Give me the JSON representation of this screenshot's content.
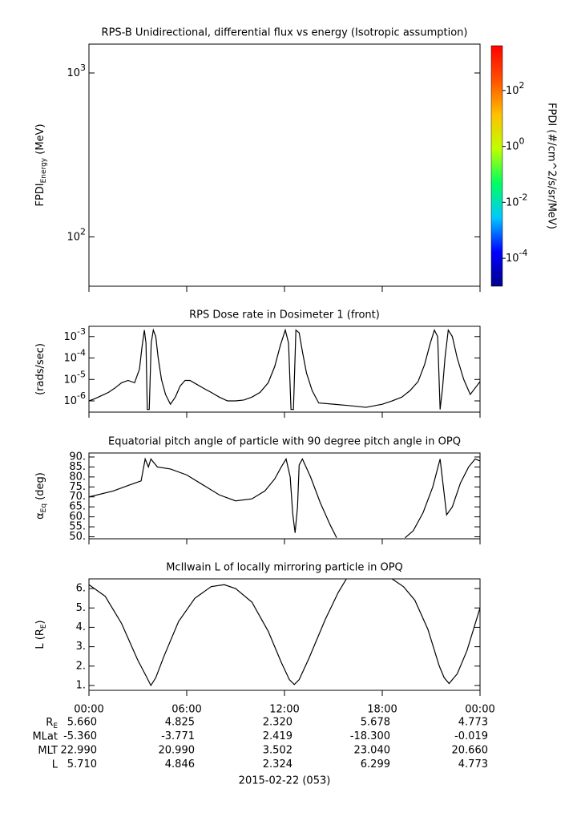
{
  "chart_data": [
    {
      "type": "spectrogram",
      "title": "RPS-B  Unidirectional, differential flux vs energy (Isotropic assumption)",
      "ylabel": {
        "text": "FPDI",
        "sub": "Energy",
        "rest": " (MeV)"
      },
      "log_y": true,
      "ylim": [
        50,
        1500
      ],
      "yticks": [
        {
          "value": 100,
          "label": "10",
          "exponent": "2"
        },
        {
          "value": 1000,
          "label": "10",
          "exponent": "3"
        }
      ],
      "colorbar": {
        "label": "FPDI (#/cm^2/s/sr/MeV)",
        "log": true,
        "clim": [
          1e-05,
          4000
        ],
        "colors": [
          "#00008b",
          "#0000ff",
          "#00c8ff",
          "#00ff60",
          "#c0ff00",
          "#ffc000",
          "#ff5000",
          "#ff0000"
        ],
        "ticks": [
          {
            "value": 0.0001,
            "label": "10",
            "exponent": "-4"
          },
          {
            "value": 0.01,
            "label": "10",
            "exponent": "-2"
          },
          {
            "value": 1,
            "label": "10",
            "exponent": "0"
          },
          {
            "value": 100,
            "label": "10",
            "exponent": "2"
          }
        ]
      }
    },
    {
      "type": "line",
      "title": "RPS  Dose rate in Dosimeter 1 (front)",
      "ylabel": {
        "text": "(rads/sec)"
      },
      "log_y": true,
      "ylim": [
        3e-07,
        0.003
      ],
      "color": "#000000",
      "yticks": [
        {
          "value": 1e-06,
          "label": "10",
          "exponent": "-6"
        },
        {
          "value": 1e-05,
          "label": "10",
          "exponent": "-5"
        },
        {
          "value": 0.0001,
          "label": "10",
          "exponent": "-4"
        },
        {
          "value": 0.001,
          "label": "10",
          "exponent": "-3"
        }
      ],
      "x": [
        0,
        0.4,
        0.8,
        1.2,
        1.6,
        2,
        2.4,
        2.8,
        3.1,
        3.25,
        3.4,
        3.5,
        3.58,
        3.7,
        3.82,
        3.95,
        4.1,
        4.25,
        4.45,
        4.7,
        5.0,
        5.3,
        5.6,
        5.9,
        6.2,
        6.6,
        7,
        7.5,
        8,
        8.5,
        9,
        9.5,
        10,
        10.5,
        11,
        11.4,
        11.75,
        12.05,
        12.25,
        12.4,
        12.55,
        12.7,
        12.9,
        13.1,
        13.35,
        13.7,
        14.1,
        15,
        16,
        17,
        18,
        18.6,
        19.2,
        19.7,
        20.2,
        20.6,
        20.95,
        21.2,
        21.4,
        21.55,
        21.7,
        21.85,
        22.05,
        22.3,
        22.6,
        23.0,
        23.4,
        23.8,
        24
      ],
      "values": [
        1e-06,
        1.3e-06,
        1.8e-06,
        2.5e-06,
        4e-06,
        7e-06,
        9e-06,
        7e-06,
        3e-05,
        0.0003,
        0.002,
        0.0005,
        4e-07,
        4e-07,
        0.0005,
        0.002,
        0.001,
        0.0001,
        1e-05,
        2e-06,
        7e-07,
        1.5e-06,
        5e-06,
        9e-06,
        9e-06,
        6e-06,
        4e-06,
        2.5e-06,
        1.5e-06,
        1e-06,
        1e-06,
        1.1e-06,
        1.5e-06,
        2.5e-06,
        7e-06,
        4e-05,
        0.0004,
        0.002,
        0.0005,
        4e-07,
        4e-07,
        0.002,
        0.0015,
        0.0002,
        2e-05,
        3e-06,
        8e-07,
        7e-07,
        6e-07,
        5e-07,
        7e-07,
        1e-06,
        1.5e-06,
        3e-06,
        8e-06,
        5e-05,
        0.0005,
        0.002,
        0.001,
        4e-07,
        4e-06,
        0.0001,
        0.002,
        0.001,
        0.0001,
        1e-05,
        2e-06,
        5e-06,
        8e-06
      ]
    },
    {
      "type": "line",
      "title": "Equatorial pitch angle of particle with 90 degree pitch angle in OPQ",
      "ylabel": {
        "text": "α",
        "sub": "Eq",
        "rest": " (deg)"
      },
      "log_y": false,
      "ylim": [
        49,
        92
      ],
      "color": "#000000",
      "yticks": [
        {
          "value": 50,
          "label": "50."
        },
        {
          "value": 55,
          "label": "55."
        },
        {
          "value": 60,
          "label": "60."
        },
        {
          "value": 65,
          "label": "65."
        },
        {
          "value": 70,
          "label": "70."
        },
        {
          "value": 75,
          "label": "75."
        },
        {
          "value": 80,
          "label": "80."
        },
        {
          "value": 85,
          "label": "85."
        },
        {
          "value": 90,
          "label": "90."
        }
      ],
      "x": [
        0,
        1.5,
        2.5,
        3.2,
        3.45,
        3.65,
        3.8,
        4.2,
        5,
        6,
        7,
        8,
        9,
        10,
        10.8,
        11.4,
        11.8,
        12.1,
        12.35,
        12.5,
        12.65,
        12.8,
        12.9,
        13.1,
        13.6,
        14.2,
        14.8,
        15.2,
        17.4,
        19.4,
        19.9,
        20.5,
        21.1,
        21.55,
        21.75,
        21.95,
        22.3,
        22.8,
        23.3,
        23.7,
        24
      ],
      "values": [
        70,
        73,
        76,
        78,
        89,
        85,
        89,
        85,
        84,
        81,
        76,
        71,
        68,
        69,
        73,
        79,
        85,
        89,
        80,
        62,
        52,
        65,
        86,
        89,
        80,
        67,
        56,
        49.5,
        null,
        49.5,
        53,
        62,
        75,
        89,
        75,
        61,
        65,
        77,
        85,
        89,
        88
      ]
    },
    {
      "type": "line",
      "title": "McIlwain L of locally mirroring particle in OPQ",
      "ylabel": {
        "text": "L (R",
        "sub": "E",
        "rest": ")"
      },
      "log_y": false,
      "ylim": [
        0.75,
        6.5
      ],
      "color": "#000000",
      "yticks": [
        {
          "value": 1,
          "label": "1."
        },
        {
          "value": 2,
          "label": "2."
        },
        {
          "value": 3,
          "label": "3."
        },
        {
          "value": 4,
          "label": "4."
        },
        {
          "value": 5,
          "label": "5."
        },
        {
          "value": 6,
          "label": "6."
        }
      ],
      "x": [
        0,
        1,
        2,
        3,
        3.5,
        3.8,
        4.1,
        4.6,
        5.5,
        6.5,
        7.5,
        8.3,
        9,
        10,
        11,
        11.8,
        12.3,
        12.6,
        12.9,
        13.5,
        14.5,
        15.3,
        15.8,
        17.2,
        18.6,
        19.3,
        20,
        20.8,
        21.5,
        21.8,
        22.1,
        22.6,
        23.2,
        24
      ],
      "values": [
        6.2,
        5.6,
        4.2,
        2.3,
        1.5,
        1.0,
        1.4,
        2.5,
        4.3,
        5.5,
        6.1,
        6.2,
        6.0,
        5.3,
        3.8,
        2.2,
        1.3,
        1.05,
        1.3,
        2.4,
        4.4,
        5.8,
        6.5,
        null,
        6.5,
        6.1,
        5.4,
        3.9,
        2.0,
        1.4,
        1.1,
        1.6,
        2.8,
        5.0
      ]
    }
  ],
  "x_axis": {
    "xlim": [
      0,
      24
    ],
    "label": "2015-02-22 (053)",
    "xticks": [
      {
        "value": 0,
        "label": "00:00"
      },
      {
        "value": 6,
        "label": "06:00"
      },
      {
        "value": 12,
        "label": "12:00"
      },
      {
        "value": 18,
        "label": "18:00"
      },
      {
        "value": 24,
        "label": "00:00"
      }
    ]
  },
  "ephemeris": [
    {
      "label": "R",
      "sub": "E",
      "values": [
        "5.660",
        "4.825",
        "2.320",
        "5.678",
        "4.773"
      ]
    },
    {
      "label": "MLat",
      "values": [
        "-5.360",
        "-3.771",
        "2.419",
        "-18.300",
        "-0.019"
      ]
    },
    {
      "label": "MLT",
      "values": [
        "22.990",
        "20.990",
        "3.502",
        "23.040",
        "20.660"
      ]
    },
    {
      "label": "L",
      "values": [
        "5.710",
        "4.846",
        "2.324",
        "6.299",
        "4.773"
      ]
    }
  ]
}
